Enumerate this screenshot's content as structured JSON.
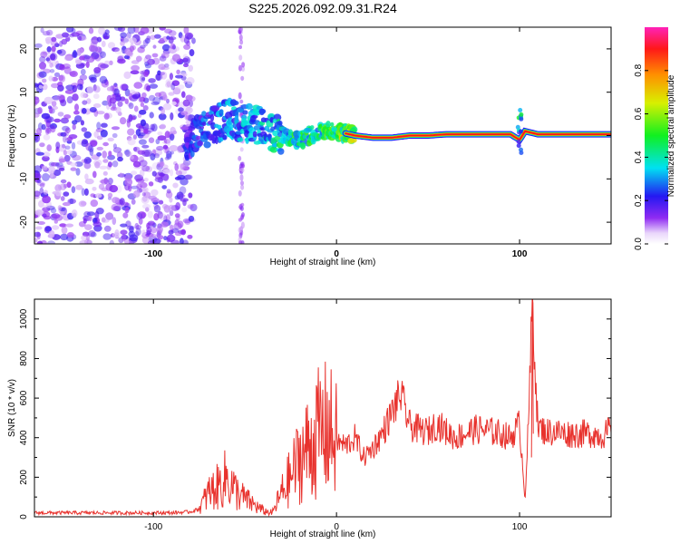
{
  "title": "S225.2026.092.09.31.R24",
  "chart_data": [
    {
      "type": "heatmap",
      "name": "spectrogram",
      "xlabel": "Height of straight line (km)",
      "ylabel": "Frequency (Hz)",
      "xlim": [
        -165,
        150
      ],
      "ylim": [
        -25,
        25
      ],
      "xticks": [
        -100,
        0,
        100
      ],
      "xtick_labels": [
        "-100",
        "0",
        "100"
      ],
      "yticks": [
        -20,
        -10,
        0,
        10,
        20
      ],
      "ytick_labels": [
        "-20",
        "-10",
        "0",
        "10",
        "20"
      ],
      "colorbar": {
        "label": "Normalized spectral amplitude",
        "range": [
          0,
          1
        ],
        "ticks": [
          0.0,
          0.2,
          0.4,
          0.6,
          0.8
        ],
        "tick_labels": [
          "0.0",
          "0.2",
          "0.4",
          "0.6",
          "0.8"
        ]
      },
      "tone_track": {
        "x": [
          -80,
          -70,
          -60,
          -50,
          -40,
          -30,
          -20,
          -10,
          0,
          10,
          20,
          30,
          40,
          50,
          60,
          80,
          95,
          100,
          103,
          110,
          150
        ],
        "frequency": [
          -1,
          2,
          4,
          3,
          2,
          0,
          -1,
          1,
          1,
          0,
          -0.5,
          -0.5,
          0,
          0,
          0.3,
          0.3,
          0.3,
          -1,
          1,
          0.3,
          0.3
        ],
        "amplitude": [
          0.25,
          0.3,
          0.35,
          0.35,
          0.4,
          0.45,
          0.5,
          0.5,
          0.6,
          0.7,
          0.8,
          0.85,
          0.9,
          0.9,
          0.9,
          0.9,
          0.9,
          0.6,
          0.5,
          0.9,
          0.9
        ]
      }
    },
    {
      "type": "line",
      "name": "snr",
      "xlabel": "Height of straight line (km)",
      "ylabel": "SNR (10 * v/v)",
      "xlim": [
        -165,
        150
      ],
      "ylim": [
        0,
        1100
      ],
      "xticks": [
        -100,
        0,
        100
      ],
      "xtick_labels": [
        "-100",
        "0",
        "100"
      ],
      "yticks": [
        0,
        200,
        400,
        600,
        800,
        1000
      ],
      "ytick_labels": [
        "0",
        "200",
        "400",
        "600",
        "800",
        "1000"
      ],
      "color": "#e8322d",
      "series": [
        {
          "name": "SNR",
          "x": [
            -165,
            -150,
            -130,
            -110,
            -90,
            -80,
            -75,
            -70,
            -65,
            -60,
            -55,
            -50,
            -45,
            -40,
            -35,
            -30,
            -25,
            -20,
            -15,
            -10,
            -5,
            0,
            5,
            10,
            15,
            20,
            25,
            30,
            35,
            40,
            45,
            50,
            55,
            60,
            65,
            70,
            75,
            80,
            85,
            90,
            95,
            100,
            103,
            105,
            107,
            110,
            115,
            120,
            125,
            130,
            135,
            140,
            145,
            150
          ],
          "y": [
            20,
            20,
            20,
            20,
            20,
            25,
            40,
            120,
            150,
            200,
            130,
            90,
            60,
            30,
            20,
            120,
            200,
            300,
            350,
            420,
            450,
            380,
            360,
            400,
            300,
            350,
            420,
            520,
            620,
            460,
            440,
            430,
            470,
            430,
            400,
            420,
            440,
            440,
            430,
            420,
            400,
            470,
            90,
            500,
            1100,
            450,
            430,
            430,
            420,
            420,
            420,
            420,
            410,
            440
          ]
        }
      ]
    }
  ]
}
